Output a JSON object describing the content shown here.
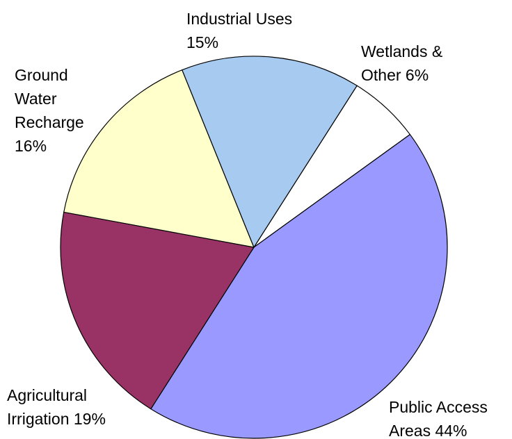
{
  "chart_data": {
    "type": "pie",
    "title": "",
    "slices": [
      {
        "label_lines": [
          "Wetlands &",
          "Other  6%"
        ],
        "value": 6,
        "color": "#ffffff"
      },
      {
        "label_lines": [
          "Public Access",
          "Areas  44%"
        ],
        "value": 44,
        "color": "#9999ff"
      },
      {
        "label_lines": [
          "Agricultural",
          "Irrigation 19%"
        ],
        "value": 19,
        "color": "#993366"
      },
      {
        "label_lines": [
          "Ground",
          "Water",
          "Recharge",
          "16%"
        ],
        "value": 16,
        "color": "#ffffcc"
      },
      {
        "label_lines": [
          "Industrial Uses",
          "15%"
        ],
        "value": 15,
        "color": "#a6caf0"
      }
    ]
  }
}
